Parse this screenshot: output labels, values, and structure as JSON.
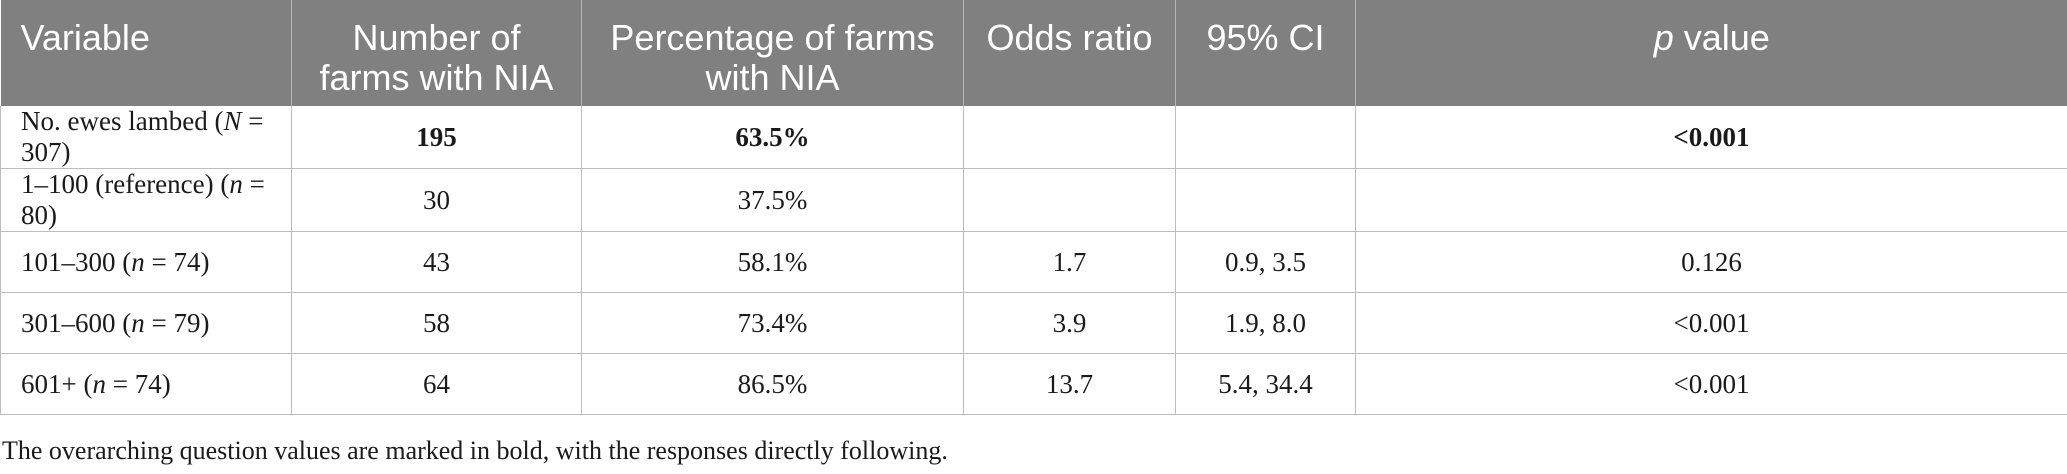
{
  "headers": [
    {
      "text": "Variable",
      "align": "left"
    },
    {
      "text": "Number of farms with NIA",
      "align": "center"
    },
    {
      "text": "Percentage of farms with NIA",
      "align": "center"
    },
    {
      "text": "Odds ratio",
      "align": "center"
    },
    {
      "text": "95% CI",
      "align": "center"
    },
    {
      "text_italic": "p",
      "text": " value",
      "align": "center"
    }
  ],
  "rows": [
    {
      "label_pre": "No. ewes lambed (",
      "label_ital": "N",
      "label_post": " = 307)",
      "farms": "195",
      "pct": "63.5%",
      "or": "",
      "ci": "",
      "p": "<0.001",
      "bold": true
    },
    {
      "label_pre": "1–100 (reference) (",
      "label_ital": "n",
      "label_post": " = 80)",
      "farms": "30",
      "pct": "37.5%",
      "or": "",
      "ci": "",
      "p": "",
      "bold": false
    },
    {
      "label_pre": "101–300 (",
      "label_ital": "n",
      "label_post": " = 74)",
      "farms": "43",
      "pct": "58.1%",
      "or": "1.7",
      "ci": "0.9, 3.5",
      "p": "0.126",
      "bold": false
    },
    {
      "label_pre": "301–600 (",
      "label_ital": "n",
      "label_post": " = 79)",
      "farms": "58",
      "pct": "73.4%",
      "or": "3.9",
      "ci": "1.9, 8.0",
      "p": "<0.001",
      "bold": false
    },
    {
      "label_pre": "601+ (",
      "label_ital": "n",
      "label_post": " = 74)",
      "farms": "64",
      "pct": "86.5%",
      "or": "13.7",
      "ci": "5.4, 34.4",
      "p": "<0.001",
      "bold": false
    }
  ],
  "footnote": "The overarching  question values are marked in bold, with the responses directly following."
}
